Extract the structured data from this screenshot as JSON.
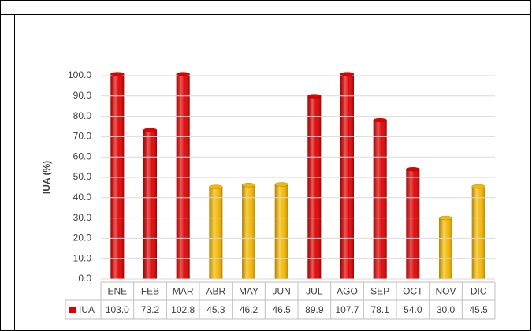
{
  "chart_data": {
    "type": "bar",
    "y_label": "IUA (%)",
    "categories": [
      "ENE",
      "FEB",
      "MAR",
      "ABR",
      "MAY",
      "JUN",
      "JUL",
      "AGO",
      "SEP",
      "OCT",
      "NOV",
      "DIC"
    ],
    "series": [
      {
        "name": "IUA",
        "color": "#e00000",
        "values": [
          103.0,
          73.2,
          102.8,
          45.3,
          46.2,
          46.5,
          89.9,
          107.7,
          78.1,
          54.0,
          30.0,
          45.5
        ],
        "value_labels": [
          "103.0",
          "73.2",
          "102.8",
          "45.3",
          "46.2",
          "46.5",
          "89.9",
          "107.7",
          "78.1",
          "54.0",
          "30.0",
          "45.5"
        ],
        "bar_colors": [
          "#e00000",
          "#e00000",
          "#e00000",
          "#f5b800",
          "#f5b800",
          "#f5b800",
          "#e00000",
          "#e00000",
          "#e00000",
          "#e00000",
          "#f5b800",
          "#f5b800"
        ]
      }
    ],
    "ylim": [
      0,
      100
    ],
    "yticks": [
      {
        "value": 0,
        "label": "0.0"
      },
      {
        "value": 10,
        "label": "10.0"
      },
      {
        "value": 20,
        "label": "20.0"
      },
      {
        "value": 30,
        "label": "30.0"
      },
      {
        "value": 40,
        "label": "40.0"
      },
      {
        "value": 50,
        "label": "50.0"
      },
      {
        "value": 60,
        "label": "60.0"
      },
      {
        "value": 70,
        "label": "70.0"
      },
      {
        "value": 80,
        "label": "80.0"
      },
      {
        "value": 90,
        "label": "90.0"
      },
      {
        "value": 100,
        "label": "100.0"
      }
    ],
    "grid": true,
    "data_table": true
  }
}
